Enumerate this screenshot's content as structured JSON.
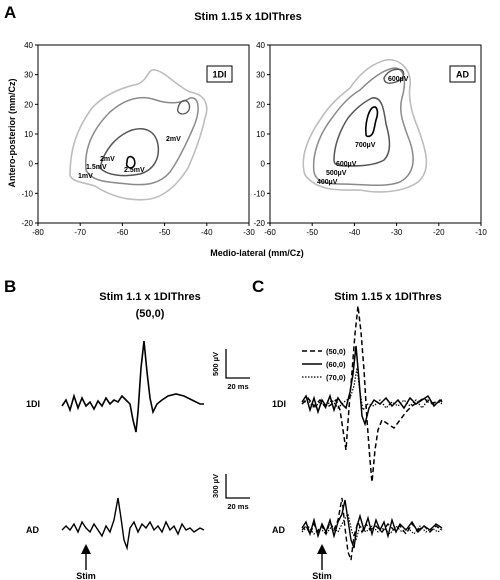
{
  "panels": {
    "a": {
      "letter": "A",
      "title": "Stim 1.15 x 1DIThres",
      "ylabel": "Antero-posterior (mm/Cz)",
      "xlabel": "Medio-lateral (mm/Cz)",
      "left_map": {
        "tag": "1DI",
        "contour_labels": [
          "2mV",
          "2mV",
          "1.5mV",
          "1mV",
          "2.5mV"
        ]
      },
      "right_map": {
        "tag": "AD",
        "contour_labels": [
          "600µV",
          "700µV",
          "600µV",
          "500µV",
          "400µV"
        ]
      }
    },
    "b": {
      "letter": "B",
      "title": "Stim 1.1 x 1DIThres",
      "subtitle": "(50,0)",
      "row_labels": [
        "1DI",
        "AD"
      ],
      "stim_label": "Stim"
    },
    "c": {
      "letter": "C",
      "title": "Stim 1.15 x 1DIThres",
      "row_labels": [
        "1DI",
        "AD"
      ],
      "stim_label": "Stim",
      "legend": [
        "(50,0)",
        "(60,0)",
        "(70,0)"
      ]
    }
  },
  "scale_bars": [
    {
      "v_label": "500 µV",
      "h_label": "20 ms"
    },
    {
      "v_label": "300 µV",
      "h_label": "20 ms"
    }
  ],
  "chart_data": [
    {
      "type": "heatmap",
      "title": "Stim 1.15 x 1DIThres",
      "xlabel": "Medio-lateral (mm/Cz)",
      "ylabel": "Antero-posterior (mm/Cz)",
      "xlim": [
        -80,
        -30
      ],
      "ylim": [
        -20,
        40
      ],
      "x_ticks": [
        -80,
        -70,
        -60,
        -50,
        -40,
        -30
      ],
      "y_ticks": [
        -20,
        -10,
        0,
        10,
        20,
        30,
        40
      ],
      "map": "1DI",
      "contour_levels": [
        "1mV",
        "1.5mV",
        "2mV",
        "2.5mV"
      ]
    },
    {
      "type": "heatmap",
      "xlim": [
        -60,
        -10
      ],
      "ylim": [
        -20,
        40
      ],
      "x_ticks": [
        -60,
        -50,
        -40,
        -30,
        -20,
        -10
      ],
      "y_ticks": [
        -20,
        -10,
        0,
        10,
        20,
        30,
        40
      ],
      "map": "AD",
      "contour_levels": [
        "400µV",
        "500µV",
        "600µV",
        "700µV"
      ]
    }
  ]
}
